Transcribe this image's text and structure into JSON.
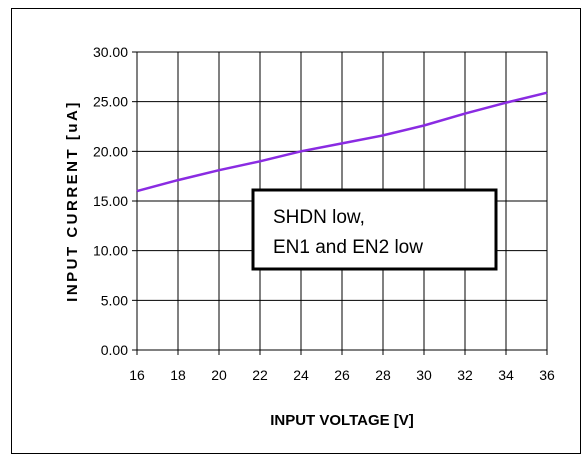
{
  "chart_data": {
    "type": "line",
    "title": "",
    "xlabel": "INPUT VOLTAGE [V]",
    "ylabel": "INPUT CURRENT [uA]",
    "xlim": [
      16,
      36
    ],
    "ylim": [
      0,
      30
    ],
    "x_ticks": [
      "16",
      "18",
      "20",
      "22",
      "24",
      "26",
      "28",
      "30",
      "32",
      "34",
      "36"
    ],
    "y_ticks": [
      "0.00",
      "5.00",
      "10.00",
      "15.00",
      "20.00",
      "25.00",
      "30.00"
    ],
    "grid": true,
    "series": [
      {
        "color": "#8a2be2",
        "x": [
          16,
          18,
          20,
          22,
          24,
          26,
          28,
          30,
          32,
          34,
          36
        ],
        "y": [
          16.0,
          17.1,
          18.1,
          19.0,
          20.0,
          20.8,
          21.6,
          22.6,
          23.8,
          24.9,
          25.9
        ]
      }
    ],
    "annotation": {
      "line1": "SHDN low,",
      "line2": "EN1 and EN2 low"
    }
  }
}
